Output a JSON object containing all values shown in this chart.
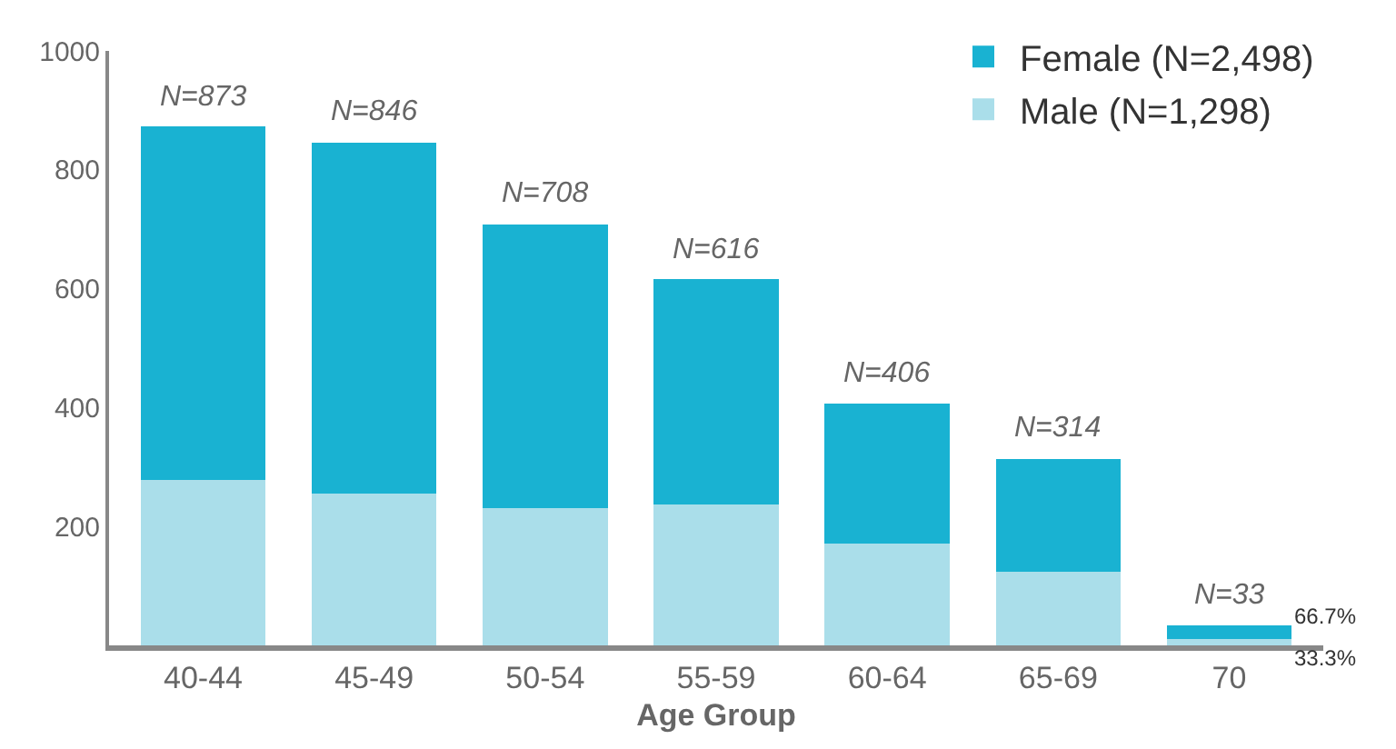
{
  "chart_data": {
    "type": "bar",
    "stacked": true,
    "xlabel": "Age Group",
    "categories": [
      "40-44",
      "45-49",
      "50-54",
      "55-59",
      "60-64",
      "65-69",
      "70"
    ],
    "series": [
      {
        "name": "Male (N=1,298)",
        "color": "#aadeea",
        "values": [
          279,
          255,
          231,
          237,
          172,
          124,
          11
        ]
      },
      {
        "name": "Female (N=2,498)",
        "color": "#19b2d2",
        "values": [
          594,
          591,
          477,
          379,
          234,
          190,
          22
        ]
      }
    ],
    "annotations": [
      {
        "text": "66.7%",
        "x": "70",
        "y": 22
      },
      {
        "text": "33.3%",
        "x": "70",
        "y": 6
      }
    ],
    "totals": [
      "N=873",
      "N=846",
      "N=708",
      "N=616",
      "N=406",
      "N=314",
      "N=33"
    ],
    "ylim": [
      0,
      1000
    ],
    "yticks": [
      200,
      400,
      600,
      800,
      1000
    ],
    "legend": "top right"
  }
}
